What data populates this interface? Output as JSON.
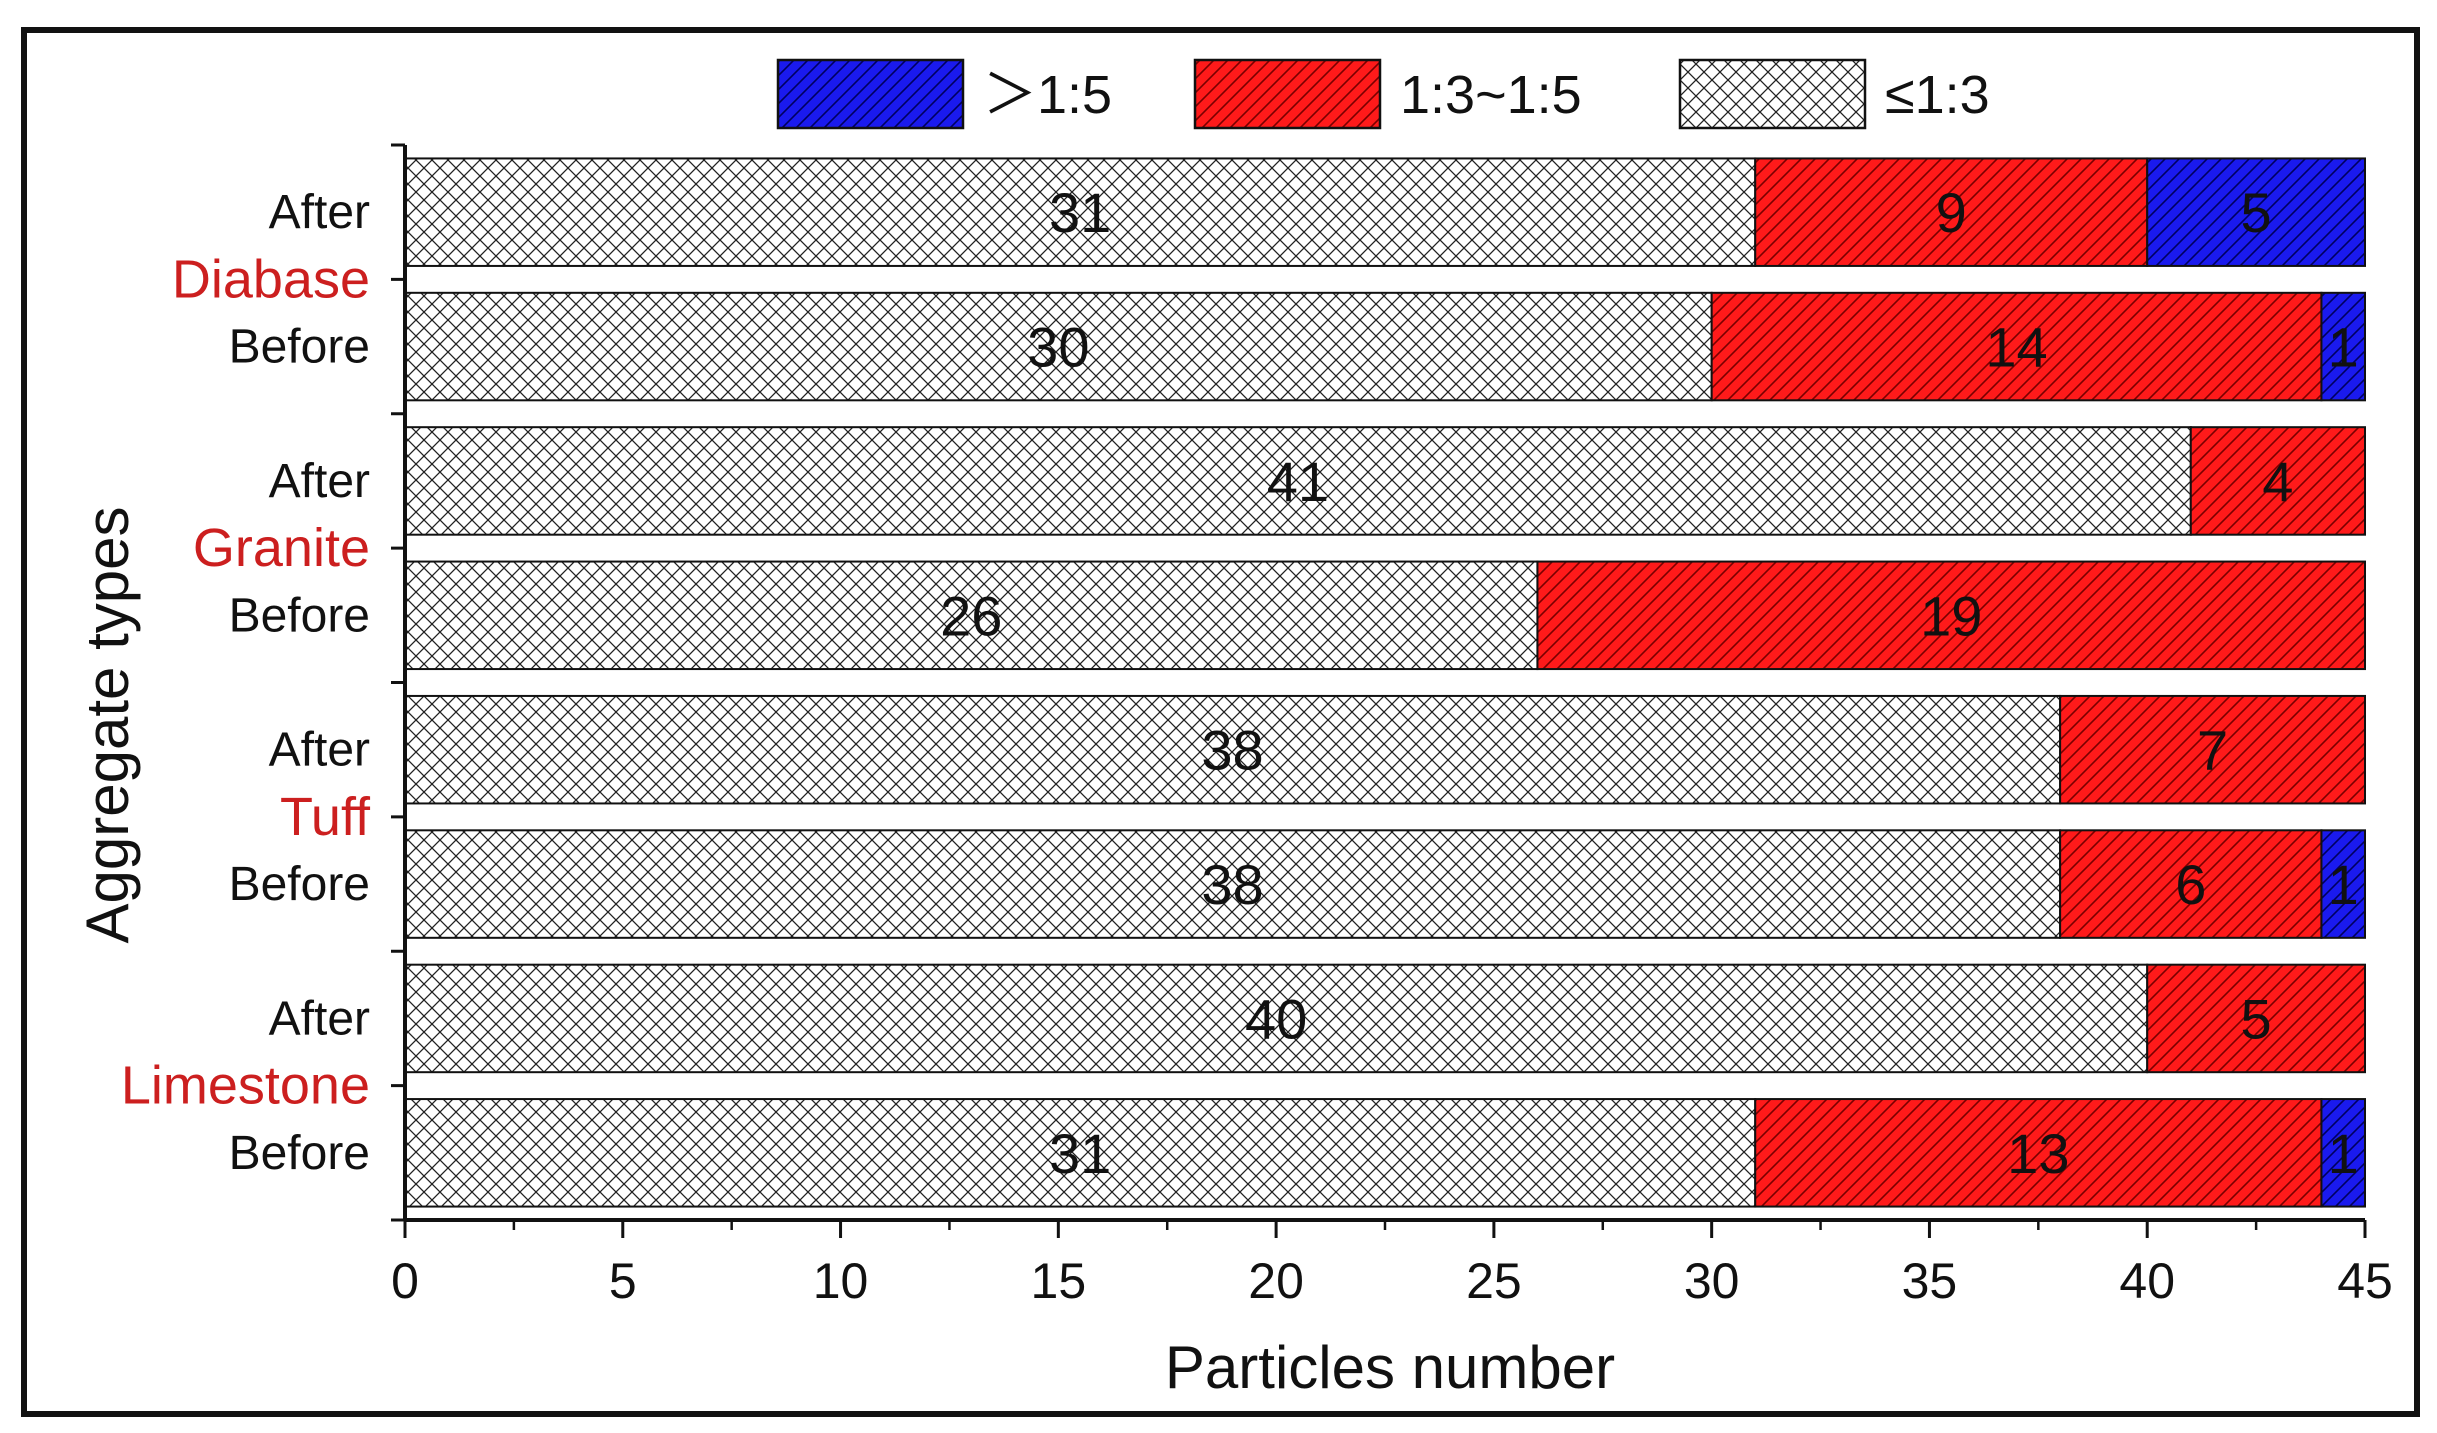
{
  "chart_data": {
    "type": "bar",
    "orientation": "horizontal",
    "stacked": true,
    "xlabel": "Particles number",
    "ylabel": "Aggregate types",
    "xlim": [
      0,
      45
    ],
    "x_ticks": [
      0,
      5,
      10,
      15,
      20,
      25,
      30,
      35,
      40,
      45
    ],
    "legend_position": "top-center",
    "groups": [
      {
        "name": "Diabase",
        "color": "#cc1f1f",
        "rows": [
          {
            "label": "After",
            "values": [
              31,
              9,
              5
            ]
          },
          {
            "label": "Before",
            "values": [
              30,
              14,
              1
            ]
          }
        ]
      },
      {
        "name": "Granite",
        "color": "#cc1f1f",
        "rows": [
          {
            "label": "After",
            "values": [
              41,
              4,
              0
            ]
          },
          {
            "label": "Before",
            "values": [
              26,
              19,
              0
            ]
          }
        ]
      },
      {
        "name": "Tuff",
        "color": "#cc1f1f",
        "rows": [
          {
            "label": "After",
            "values": [
              38,
              7,
              0
            ]
          },
          {
            "label": "Before",
            "values": [
              38,
              6,
              1
            ]
          }
        ]
      },
      {
        "name": "Limestone",
        "color": "#cc1f1f",
        "rows": [
          {
            "label": "After",
            "values": [
              40,
              5,
              0
            ]
          },
          {
            "label": "Before",
            "values": [
              31,
              13,
              1
            ]
          }
        ]
      }
    ],
    "series": [
      {
        "name": "≤1:3",
        "color": "#ffffff",
        "pattern": "crosshatch"
      },
      {
        "name": "1:3~1:5",
        "color": "#ff1a1a",
        "pattern": "diagonal"
      },
      {
        "name": "＞1:5",
        "color": "#1a1aee",
        "pattern": "diagonal"
      }
    ],
    "legend_order": [
      2,
      1,
      0
    ]
  }
}
